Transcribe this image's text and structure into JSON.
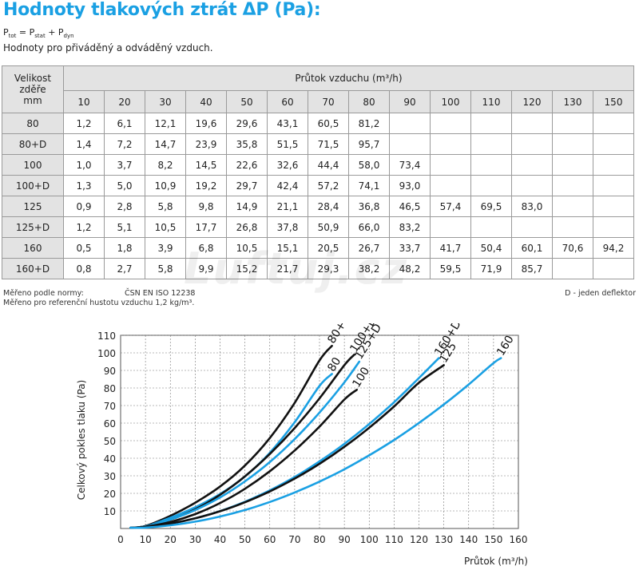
{
  "title": "Hodnoty tlakových ztrát ΔP (Pa):",
  "formula": {
    "p": "P",
    "tot": "tot",
    "eq": " = P",
    "stat": "stat",
    "plus": " + P",
    "dyn": "dyn"
  },
  "note": "Hodnoty pro přiváděný a odváděný vzduch.",
  "table": {
    "corner_lines": [
      "Velikost",
      "zděře",
      "mm"
    ],
    "flow_title": "Průtok vzduchu (m³/h)",
    "flows": [
      "10",
      "20",
      "30",
      "40",
      "50",
      "60",
      "70",
      "80",
      "90",
      "100",
      "110",
      "120",
      "130",
      "150"
    ],
    "rows": [
      {
        "size": "80",
        "values": [
          "1,2",
          "6,1",
          "12,1",
          "19,6",
          "29,6",
          "43,1",
          "60,5",
          "81,2",
          "",
          "",
          "",
          "",
          "",
          ""
        ]
      },
      {
        "size": "80+D",
        "values": [
          "1,4",
          "7,2",
          "14,7",
          "23,9",
          "35,8",
          "51,5",
          "71,5",
          "95,7",
          "",
          "",
          "",
          "",
          "",
          ""
        ]
      },
      {
        "size": "100",
        "values": [
          "1,0",
          "3,7",
          "8,2",
          "14,5",
          "22,6",
          "32,6",
          "44,4",
          "58,0",
          "73,4",
          "",
          "",
          "",
          "",
          ""
        ]
      },
      {
        "size": "100+D",
        "values": [
          "1,3",
          "5,0",
          "10,9",
          "19,2",
          "29,7",
          "42,4",
          "57,2",
          "74,1",
          "93,0",
          "",
          "",
          "",
          "",
          ""
        ]
      },
      {
        "size": "125",
        "values": [
          "0,9",
          "2,8",
          "5,8",
          "9,8",
          "14,9",
          "21,1",
          "28,4",
          "36,8",
          "46,5",
          "57,4",
          "69,5",
          "83,0",
          "",
          ""
        ]
      },
      {
        "size": "125+D",
        "values": [
          "1,2",
          "5,1",
          "10,5",
          "17,7",
          "26,8",
          "37,8",
          "50,9",
          "66,0",
          "83,2",
          "",
          "",
          "",
          "",
          ""
        ]
      },
      {
        "size": "160",
        "values": [
          "0,5",
          "1,8",
          "3,9",
          "6,8",
          "10,5",
          "15,1",
          "20,5",
          "26,7",
          "33,7",
          "41,7",
          "50,4",
          "60,1",
          "70,6",
          "94,2"
        ]
      },
      {
        "size": "160+D",
        "values": [
          "0,8",
          "2,7",
          "5,8",
          "9,9",
          "15,2",
          "21,7",
          "29,3",
          "38,2",
          "48,2",
          "59,5",
          "71,9",
          "85,7",
          "",
          ""
        ]
      }
    ]
  },
  "footer": {
    "norm_label": "Měřeno podle normy:",
    "norm_value": "ČSN EN ISO 12238",
    "density": "Měřeno pro referenční hustotu vzduchu 1,2 kg/m³.",
    "deflector": "D - jeden deflektor"
  },
  "watermark": "Luftuj.cz",
  "colors": {
    "title": "#1aa0e3",
    "black_series": "#111111",
    "blue_series": "#1aa0e3",
    "header_bg": "#e3e3e3"
  },
  "chart_data": {
    "type": "line",
    "xlabel": "Průtok (m³/h)",
    "ylabel": "Celkový pokles tlaku (Pa)",
    "xlim": [
      0,
      160
    ],
    "ylim": [
      0,
      110
    ],
    "xticks": [
      "0",
      "10",
      "20",
      "30",
      "40",
      "50",
      "60",
      "70",
      "80",
      "90",
      "100",
      "110",
      "120",
      "130",
      "140",
      "150",
      "160"
    ],
    "yticks": [
      "10",
      "20",
      "30",
      "40",
      "50",
      "60",
      "70",
      "80",
      "90",
      "100",
      "110"
    ],
    "grid": true,
    "series": [
      {
        "name": "80+D",
        "color": "#111111",
        "x": [
          10,
          20,
          30,
          40,
          50,
          60,
          70,
          80,
          85
        ],
        "y": [
          1.4,
          7.2,
          14.7,
          23.9,
          35.8,
          51.5,
          71.5,
          95.7,
          104
        ]
      },
      {
        "name": "80",
        "color": "#1aa0e3",
        "x": [
          10,
          20,
          30,
          40,
          50,
          60,
          70,
          80,
          85
        ],
        "y": [
          1.2,
          6.1,
          12.1,
          19.6,
          29.6,
          43.1,
          60.5,
          81.2,
          88
        ]
      },
      {
        "name": "100+D",
        "color": "#111111",
        "x": [
          10,
          20,
          30,
          40,
          50,
          60,
          70,
          80,
          90,
          94
        ],
        "y": [
          1.3,
          5.0,
          10.9,
          19.2,
          29.7,
          42.4,
          57.2,
          74.1,
          93.0,
          99
        ]
      },
      {
        "name": "125+D",
        "color": "#1aa0e3",
        "x": [
          10,
          20,
          30,
          40,
          50,
          60,
          70,
          80,
          90,
          96
        ],
        "y": [
          1.2,
          5.1,
          10.5,
          17.7,
          26.8,
          37.8,
          50.9,
          66.0,
          83.2,
          95
        ]
      },
      {
        "name": "100",
        "color": "#111111",
        "x": [
          10,
          20,
          30,
          40,
          50,
          60,
          70,
          80,
          90,
          95
        ],
        "y": [
          1.0,
          3.7,
          8.2,
          14.5,
          22.6,
          32.6,
          44.4,
          58.0,
          73.4,
          79
        ]
      },
      {
        "name": "160+D",
        "color": "#1aa0e3",
        "x": [
          10,
          20,
          30,
          40,
          50,
          60,
          70,
          80,
          90,
          100,
          110,
          120,
          128
        ],
        "y": [
          0.8,
          2.7,
          5.8,
          9.9,
          15.2,
          21.7,
          29.3,
          38.2,
          48.2,
          59.5,
          71.9,
          85.7,
          97
        ]
      },
      {
        "name": "125",
        "color": "#111111",
        "x": [
          10,
          20,
          30,
          40,
          50,
          60,
          70,
          80,
          90,
          100,
          110,
          120,
          130
        ],
        "y": [
          0.9,
          2.8,
          5.8,
          9.8,
          14.9,
          21.1,
          28.4,
          36.8,
          46.5,
          57.4,
          69.5,
          83.0,
          93
        ]
      },
      {
        "name": "160",
        "color": "#1aa0e3",
        "x": [
          10,
          20,
          30,
          40,
          50,
          60,
          70,
          80,
          90,
          100,
          110,
          120,
          130,
          140,
          150,
          153
        ],
        "y": [
          0.5,
          1.8,
          3.9,
          6.8,
          10.5,
          15.1,
          20.5,
          26.7,
          33.7,
          41.7,
          50.4,
          60.1,
          70.6,
          82,
          94.2,
          97
        ]
      }
    ]
  }
}
